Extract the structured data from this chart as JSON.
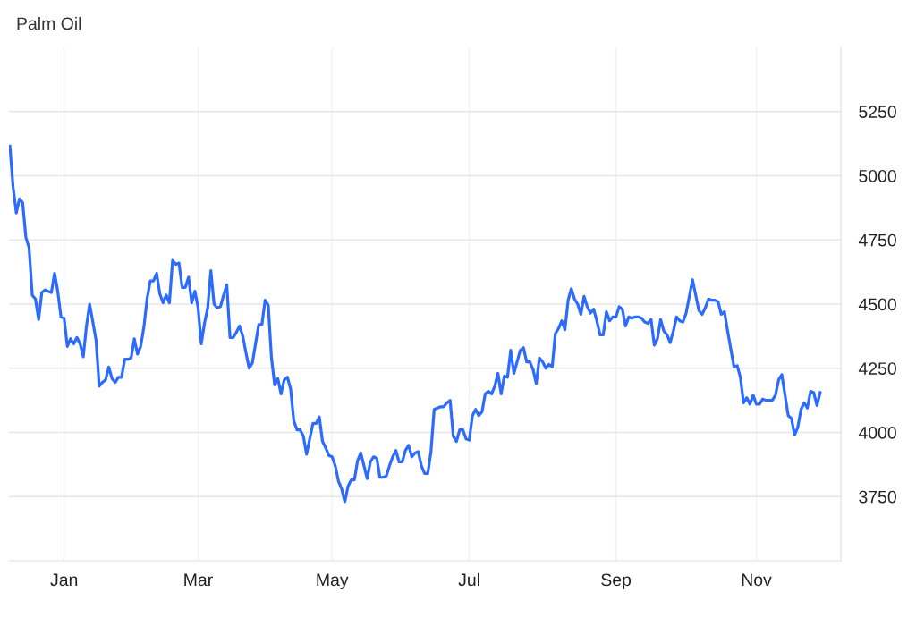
{
  "chart_data": {
    "type": "line",
    "title": "Palm Oil",
    "categories": [
      null,
      null,
      null,
      null,
      null,
      null,
      null,
      null,
      null,
      null,
      null,
      null,
      null,
      null,
      null,
      null,
      null,
      "Jan",
      null,
      null,
      null,
      null,
      null,
      null,
      null,
      null,
      null,
      null,
      null,
      null,
      null,
      null,
      null,
      null,
      null,
      null,
      null,
      null,
      null,
      null,
      null,
      null,
      null,
      null,
      null,
      null,
      null,
      null,
      null,
      null,
      null,
      null,
      null,
      null,
      null,
      null,
      null,
      null,
      null,
      "Mar",
      null,
      null,
      null,
      null,
      null,
      null,
      null,
      null,
      null,
      null,
      null,
      null,
      null,
      null,
      null,
      null,
      null,
      null,
      null,
      null,
      null,
      null,
      null,
      null,
      null,
      null,
      null,
      null,
      null,
      null,
      null,
      null,
      null,
      null,
      null,
      null,
      null,
      null,
      null,
      null,
      null,
      "May",
      null,
      null,
      null,
      null,
      null,
      null,
      null,
      null,
      null,
      null,
      null,
      null,
      null,
      null,
      null,
      null,
      null,
      null,
      null,
      null,
      null,
      null,
      null,
      null,
      null,
      null,
      null,
      null,
      null,
      null,
      null,
      null,
      null,
      null,
      null,
      null,
      null,
      null,
      null,
      null,
      null,
      null,
      "Jul",
      null,
      null,
      null,
      null,
      null,
      null,
      null,
      null,
      null,
      null,
      null,
      null,
      null,
      null,
      null,
      null,
      null,
      null,
      null,
      null,
      null,
      null,
      null,
      null,
      null,
      null,
      null,
      null,
      null,
      null,
      null,
      null,
      null,
      null,
      null,
      null,
      null,
      null,
      null,
      null,
      null,
      null,
      null,
      null,
      null,
      "Sep",
      null,
      null,
      null,
      null,
      null,
      null,
      null,
      null,
      null,
      null,
      null,
      null,
      null,
      null,
      null,
      null,
      null,
      null,
      null,
      null,
      null,
      null,
      null,
      null,
      null,
      null,
      null,
      null,
      null,
      null,
      null,
      null,
      null,
      null,
      null,
      null,
      null,
      null,
      null,
      null,
      null,
      null,
      null,
      "Nov",
      null,
      null,
      null,
      null,
      null,
      null,
      null,
      null,
      null,
      null,
      null,
      null,
      null,
      null,
      null,
      null,
      null,
      null,
      null,
      null
    ],
    "series": [
      {
        "color": "#2d6bff",
        "values": [
          5115,
          4955,
          4855,
          4910,
          4895,
          4760,
          4720,
          4535,
          4520,
          4440,
          4545,
          4555,
          4550,
          4545,
          4620,
          4550,
          4450,
          4445,
          4335,
          4365,
          4345,
          4370,
          4345,
          4295,
          4415,
          4500,
          4430,
          4360,
          4180,
          4195,
          4205,
          4255,
          4210,
          4195,
          4215,
          4215,
          4285,
          4285,
          4290,
          4365,
          4305,
          4335,
          4410,
          4520,
          4590,
          4590,
          4620,
          4540,
          4505,
          4535,
          4505,
          4670,
          4655,
          4660,
          4565,
          4565,
          4605,
          4505,
          4550,
          4485,
          4345,
          4425,
          4485,
          4630,
          4500,
          4485,
          4490,
          4535,
          4575,
          4370,
          4370,
          4390,
          4415,
          4375,
          4310,
          4250,
          4270,
          4345,
          4420,
          4420,
          4515,
          4495,
          4290,
          4185,
          4210,
          4150,
          4205,
          4215,
          4170,
          4045,
          4010,
          4010,
          3985,
          3915,
          3975,
          4035,
          4035,
          4060,
          3965,
          3940,
          3910,
          3905,
          3870,
          3810,
          3780,
          3730,
          3790,
          3815,
          3815,
          3890,
          3920,
          3870,
          3820,
          3885,
          3905,
          3900,
          3825,
          3825,
          3830,
          3870,
          3905,
          3930,
          3885,
          3885,
          3930,
          3950,
          3905,
          3920,
          3925,
          3870,
          3840,
          3840,
          3925,
          4090,
          4095,
          4100,
          4100,
          4115,
          4125,
          3985,
          3965,
          4010,
          4010,
          3975,
          3970,
          4065,
          4090,
          4065,
          4080,
          4150,
          4160,
          4150,
          4180,
          4230,
          4150,
          4220,
          4215,
          4320,
          4230,
          4275,
          4320,
          4330,
          4275,
          4275,
          4245,
          4190,
          4290,
          4275,
          4250,
          4265,
          4255,
          4385,
          4405,
          4435,
          4400,
          4515,
          4560,
          4520,
          4500,
          4460,
          4530,
          4490,
          4465,
          4480,
          4435,
          4380,
          4380,
          4470,
          4435,
          4450,
          4450,
          4490,
          4480,
          4415,
          4450,
          4445,
          4450,
          4450,
          4445,
          4430,
          4425,
          4440,
          4340,
          4365,
          4440,
          4395,
          4380,
          4350,
          4395,
          4450,
          4435,
          4430,
          4465,
          4530,
          4595,
          4535,
          4475,
          4460,
          4485,
          4520,
          4515,
          4515,
          4510,
          4460,
          4470,
          4395,
          4325,
          4255,
          4260,
          4215,
          4115,
          4135,
          4110,
          4145,
          4110,
          4110,
          4130,
          4125,
          4125,
          4125,
          4145,
          4205,
          4225,
          4145,
          4065,
          4055,
          3990,
          4020,
          4090,
          4115,
          4095,
          4160,
          4155,
          4105,
          4155
        ]
      }
    ],
    "ylim": [
      3500,
      5500
    ],
    "yticks": [
      3750,
      4000,
      4250,
      4500,
      4750,
      5000,
      5250
    ],
    "grid": true,
    "line_style": "solid"
  }
}
